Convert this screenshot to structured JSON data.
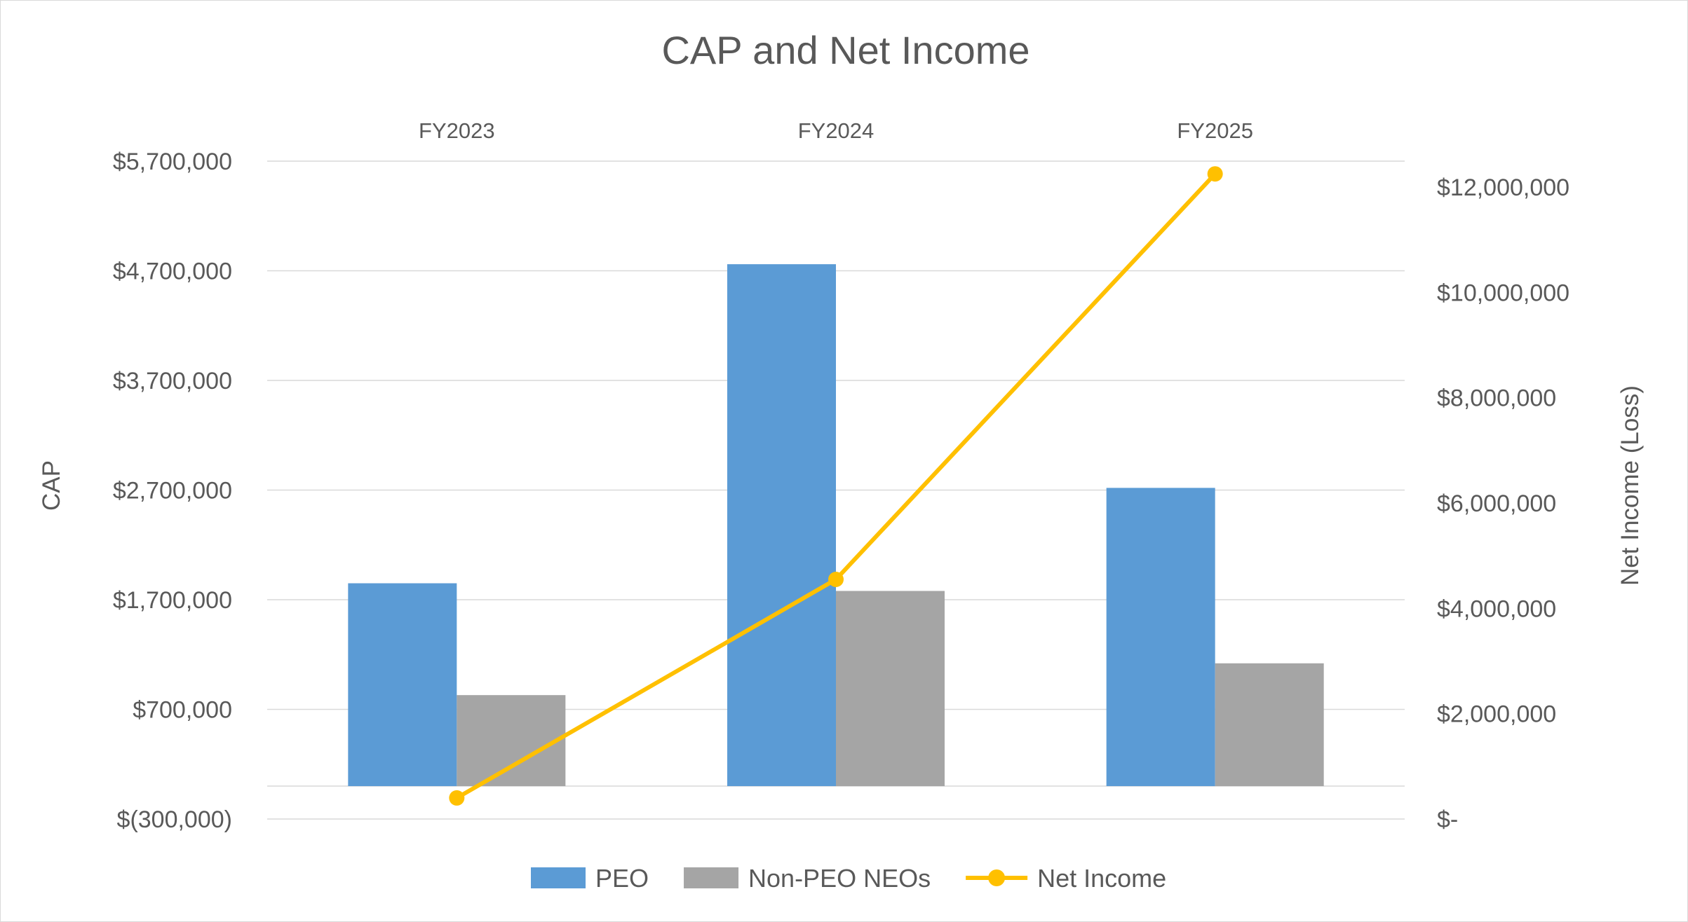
{
  "chart_data": {
    "type": "bar",
    "title": "CAP and Net Income",
    "categories": [
      "FY2023",
      "FY2024",
      "FY2025"
    ],
    "ylabel": "CAP",
    "y2label": "Net Income (Loss)",
    "ylim": [
      -300000,
      5700000
    ],
    "y2lim": [
      0,
      12500000
    ],
    "yticks": [
      "$5,700,000",
      "$4,700,000",
      "$3,700,000",
      "$2,700,000",
      "$1,700,000",
      "$700,000",
      "$(300,000)"
    ],
    "y2ticks": [
      "$12,000,000",
      "$10,000,000",
      "$8,000,000",
      "$6,000,000",
      "$4,000,000",
      "$2,000,000",
      "$-"
    ],
    "series": [
      {
        "name": "PEO",
        "type": "bar",
        "axis": "left",
        "color": "#5b9bd5",
        "values": [
          1850000,
          4760000,
          2720000
        ]
      },
      {
        "name": "Non-PEO NEOs",
        "type": "bar",
        "axis": "left",
        "color": "#a5a5a5",
        "values": [
          830000,
          1780000,
          1120000
        ]
      },
      {
        "name": "Net Income",
        "type": "line",
        "axis": "right",
        "color": "#ffc000",
        "values": [
          400000,
          4550000,
          12250000
        ]
      }
    ],
    "grid": true,
    "legend": "bottom"
  }
}
